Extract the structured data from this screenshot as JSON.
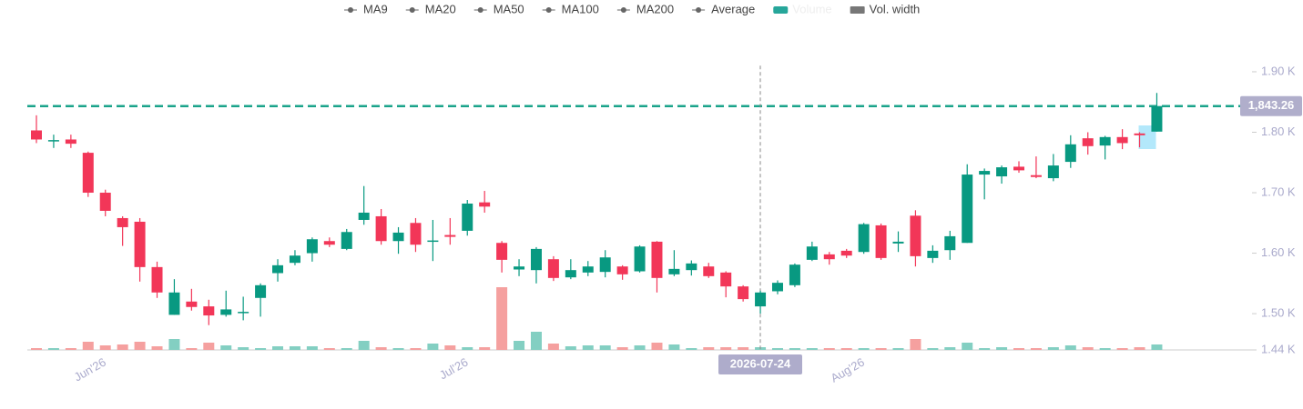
{
  "chart_data": {
    "type": "candlestick",
    "legend": [
      "MA9",
      "MA20",
      "MA50",
      "MA100",
      "MA200",
      "Average",
      "Volume",
      "Vol. width"
    ],
    "categories": [
      null,
      null,
      null,
      null,
      "Jun'26",
      null,
      null,
      null,
      null,
      null,
      null,
      null,
      null,
      null,
      null,
      null,
      null,
      null,
      null,
      null,
      null,
      null,
      null,
      null,
      null,
      "Jul'26",
      null,
      null,
      null,
      null,
      null,
      null,
      null,
      null,
      null,
      null,
      null,
      null,
      null,
      null,
      null,
      null,
      null,
      null,
      null,
      null,
      null,
      null,
      "Aug'26",
      null,
      null,
      null,
      null,
      null,
      null,
      null,
      null,
      null,
      null,
      null,
      null,
      null,
      null,
      null,
      null,
      null
    ],
    "open": [
      1803,
      1785,
      1788,
      1766,
      1700,
      1658,
      1652,
      1577,
      1498,
      1520,
      1512,
      1498,
      1502,
      1526,
      1567,
      1584,
      1600,
      1620,
      1607,
      1655,
      1661,
      1620,
      1650,
      1619,
      1630,
      1637,
      1684,
      1617,
      1573,
      1572,
      1590,
      1560,
      1568,
      1569,
      1578,
      1570,
      1619,
      1565,
      1572,
      1578,
      1568,
      1545,
      1512,
      1537,
      1547,
      1589,
      1598,
      1604,
      1602,
      1646,
      1616,
      1662,
      1592,
      1605,
      1617,
      1730,
      1727,
      1743,
      1729,
      1724,
      1751,
      1790,
      1778,
      1792,
      1798,
      1801
    ],
    "high": [
      1828,
      1796,
      1796,
      1768,
      1705,
      1661,
      1658,
      1586,
      1557,
      1541,
      1523,
      1538,
      1528,
      1550,
      1590,
      1605,
      1626,
      1626,
      1640,
      1711,
      1673,
      1643,
      1658,
      1655,
      1658,
      1688,
      1703,
      1620,
      1590,
      1610,
      1595,
      1590,
      1587,
      1605,
      1580,
      1613,
      1620,
      1605,
      1588,
      1584,
      1570,
      1547,
      1538,
      1555,
      1583,
      1619,
      1602,
      1607,
      1650,
      1649,
      1636,
      1671,
      1613,
      1637,
      1747,
      1740,
      1745,
      1752,
      1760,
      1764,
      1795,
      1800,
      1794,
      1805,
      1800,
      1865
    ],
    "low": [
      1782,
      1774,
      1774,
      1693,
      1661,
      1612,
      1553,
      1526,
      1498,
      1505,
      1481,
      1495,
      1489,
      1495,
      1553,
      1580,
      1586,
      1610,
      1605,
      1647,
      1614,
      1599,
      1602,
      1587,
      1614,
      1629,
      1667,
      1568,
      1562,
      1550,
      1554,
      1557,
      1562,
      1560,
      1556,
      1568,
      1535,
      1562,
      1563,
      1559,
      1527,
      1520,
      1500,
      1532,
      1544,
      1587,
      1581,
      1592,
      1599,
      1589,
      1602,
      1578,
      1584,
      1589,
      1617,
      1689,
      1715,
      1733,
      1724,
      1719,
      1741,
      1763,
      1755,
      1772,
      1775,
      1801
    ],
    "close": [
      1788,
      1787,
      1781,
      1700,
      1670,
      1643,
      1577,
      1535,
      1535,
      1511,
      1497,
      1507,
      1503,
      1547,
      1580,
      1596,
      1623,
      1614,
      1635,
      1667,
      1620,
      1634,
      1614,
      1621,
      1627,
      1682,
      1677,
      1589,
      1578,
      1607,
      1559,
      1572,
      1578,
      1593,
      1565,
      1611,
      1559,
      1574,
      1583,
      1562,
      1545,
      1524,
      1535,
      1551,
      1581,
      1611,
      1590,
      1596,
      1648,
      1592,
      1619,
      1595,
      1604,
      1628,
      1730,
      1736,
      1742,
      1737,
      1726,
      1745,
      1780,
      1777,
      1792,
      1782,
      1795,
      1843.26
    ],
    "volume": [
      2,
      2,
      2,
      9,
      5,
      6,
      9,
      4,
      12,
      2,
      8,
      5,
      3,
      2,
      4,
      4,
      4,
      2,
      2,
      10,
      3,
      2,
      2,
      7,
      5,
      3,
      3,
      69,
      10,
      20,
      7,
      4,
      5,
      5,
      3,
      5,
      8,
      6,
      2,
      3,
      3,
      3,
      3,
      2,
      2,
      2,
      2,
      2,
      2,
      2,
      2,
      12,
      2,
      3,
      8,
      2,
      3,
      2,
      2,
      3,
      5,
      3,
      2,
      2,
      3,
      6
    ],
    "up_color": "#089981",
    "down_color": "#f23658",
    "volume_up_color": "#83cfc2",
    "volume_down_color": "#f5a09f",
    "ylim": [
      1440,
      1910
    ],
    "yticks": [
      {
        "value": 1440,
        "label": "1.44 K"
      },
      {
        "value": 1500,
        "label": "1.50 K"
      },
      {
        "value": 1600,
        "label": "1.60 K"
      },
      {
        "value": 1700,
        "label": "1.70 K"
      },
      {
        "value": 1800,
        "label": "1.80 K"
      },
      {
        "value": 1900,
        "label": "1.90 K"
      }
    ],
    "last_price": {
      "value": 1843.26,
      "label": "1,843.26"
    },
    "crosshair_label": "2026-07-24"
  }
}
